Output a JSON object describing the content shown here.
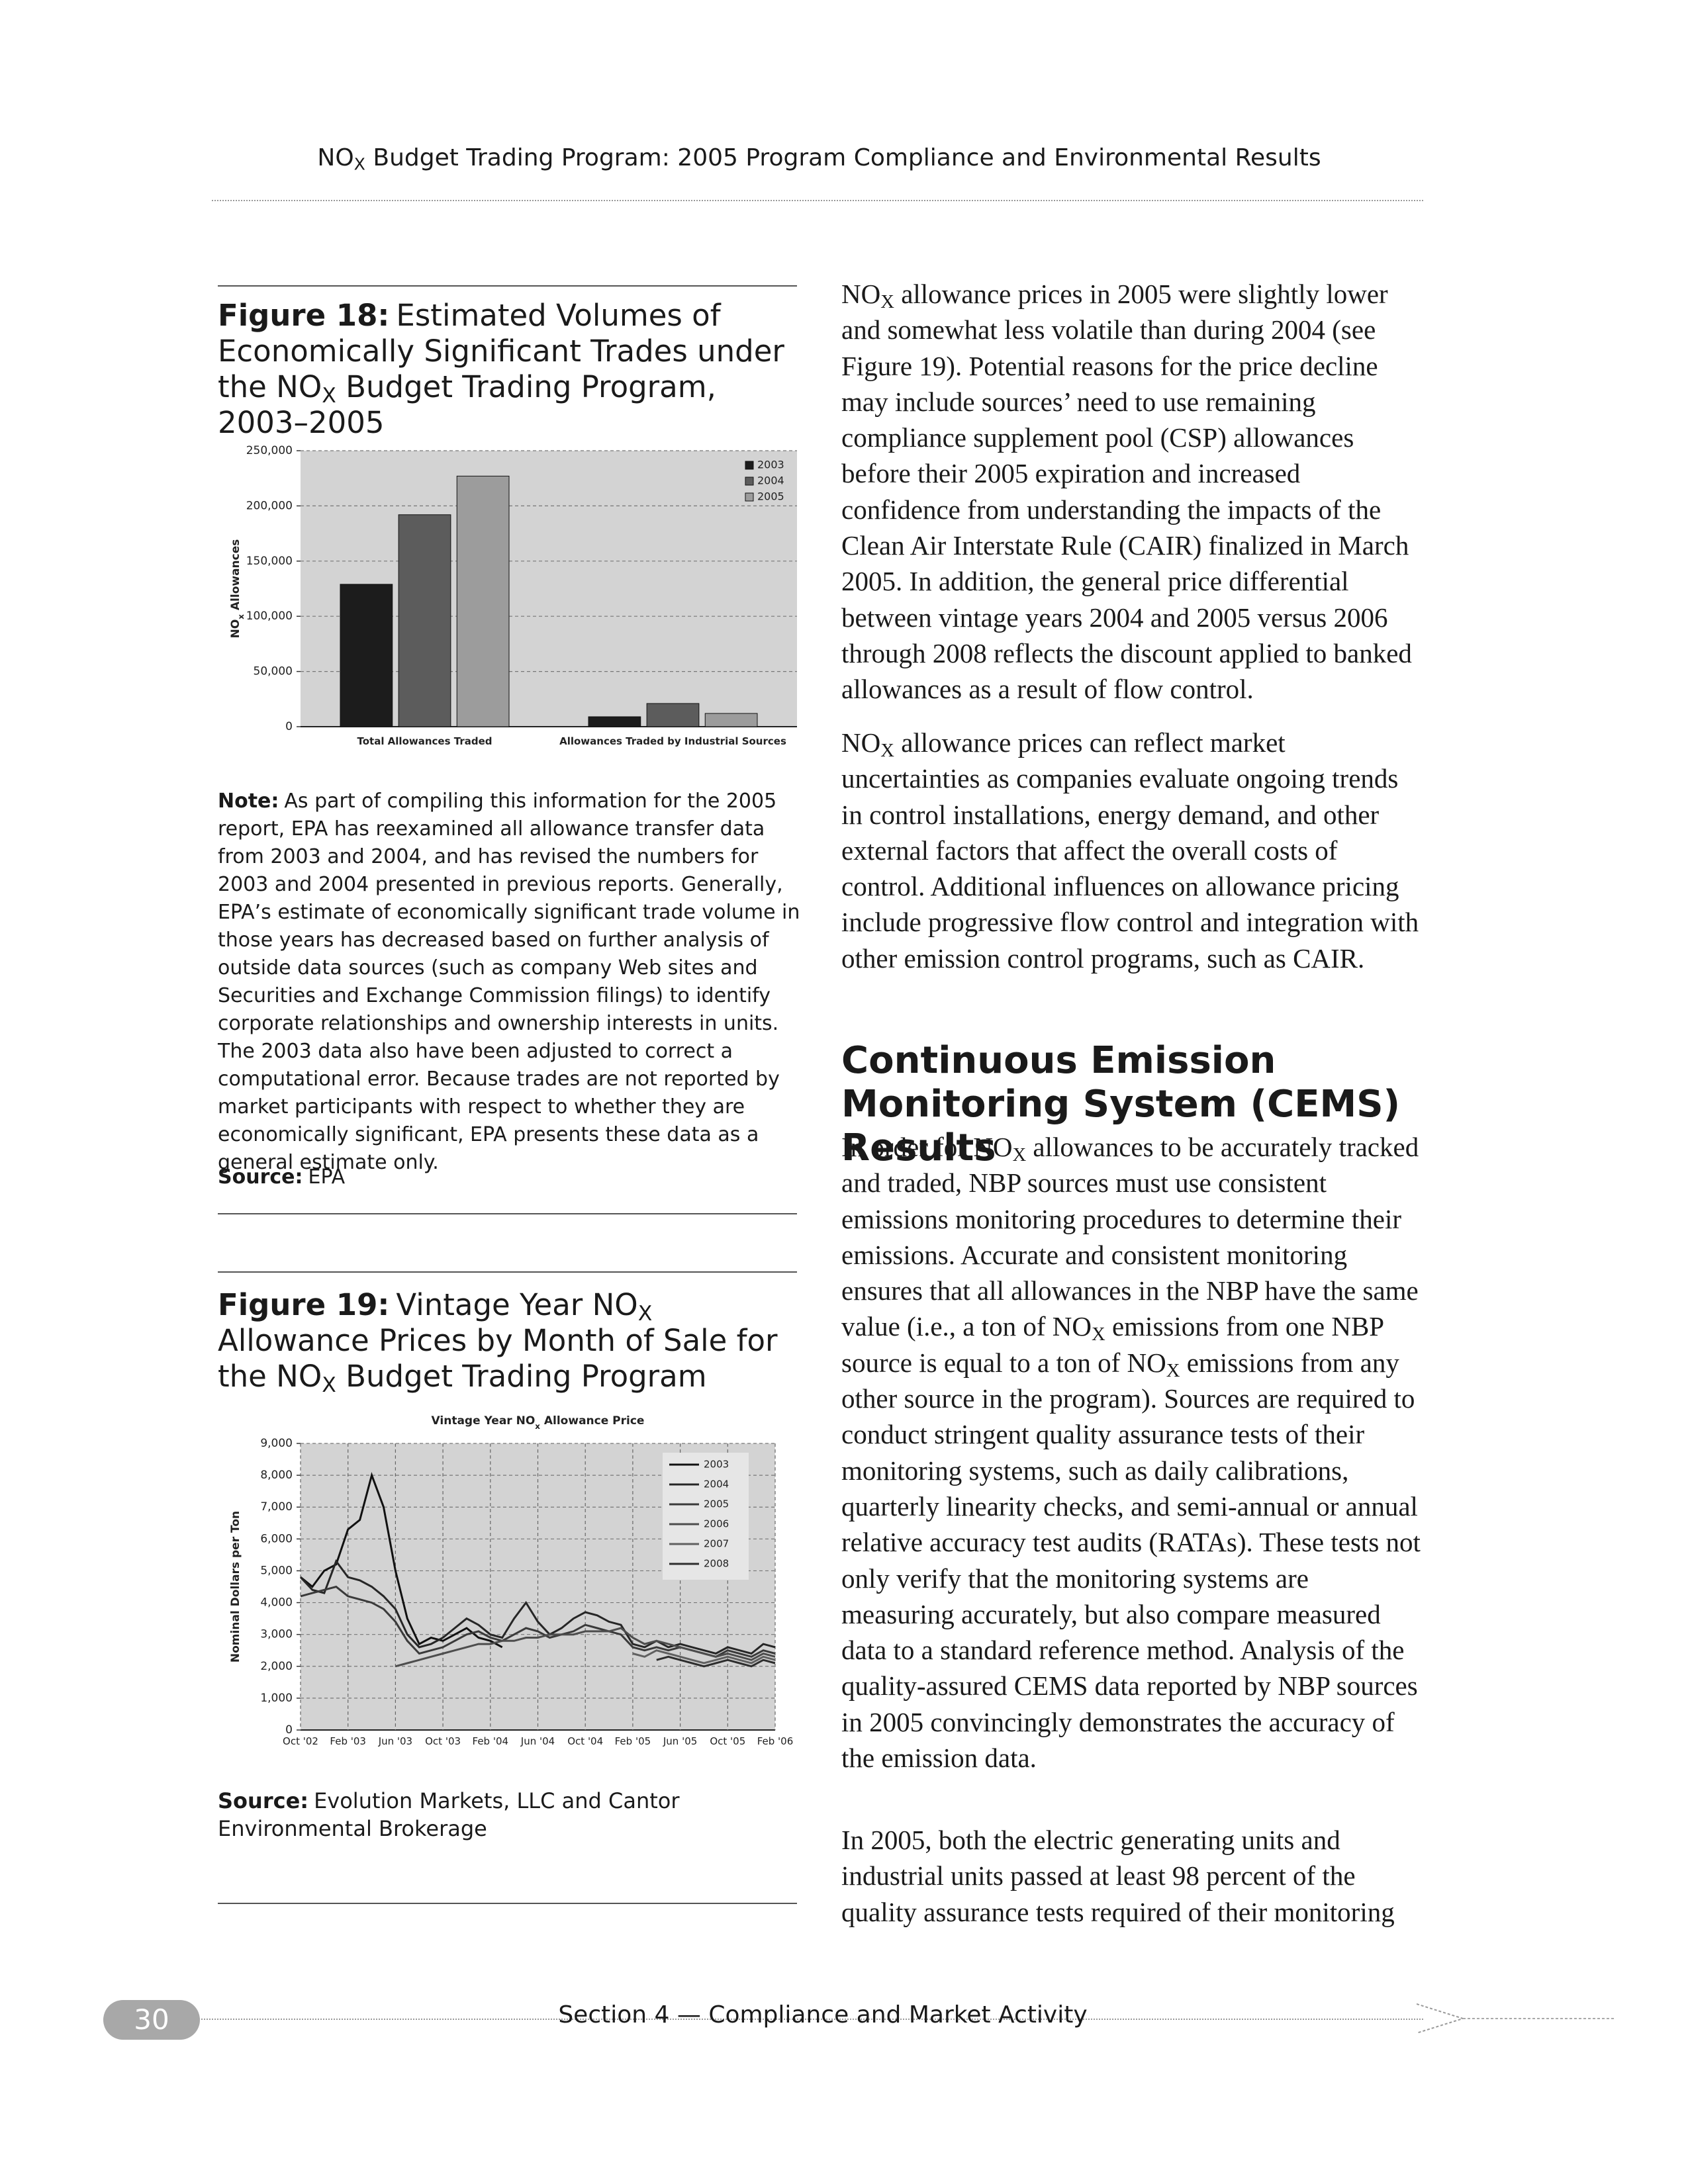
{
  "header": {
    "title": [
      "NO",
      {
        "sub": "X"
      },
      " Budget Trading Program: 2005 Program Compliance and Environmental Results"
    ]
  },
  "figure18": {
    "label": "Figure 18:",
    "caption": [
      "Estimated Volumes of Economically Significant Trades under the NO",
      {
        "sub": "X"
      },
      " Budget Trading Program, 2003–2005"
    ],
    "note_label": "Note:",
    "note": "As part of compiling this information for the 2005 report, EPA has reexamined all allowance transfer data from 2003 and 2004, and has revised the numbers for 2003 and 2004 presented in previous reports. Generally, EPA’s estimate of economically significant trade volume in those years has decreased based on further analysis of outside data sources (such as company Web sites and Securities and Exchange Commission filings) to identify corporate relationships and ownership interests in units. The 2003 data also have been adjusted to correct a computational error. Because trades are not reported by market participants with respect to whether they are economically significant, EPA presents these data as a general estimate only.",
    "source_label": "Source:",
    "source": "EPA"
  },
  "figure19": {
    "label": "Figure 19:",
    "caption": [
      "Vintage Year NO",
      {
        "sub": "X"
      },
      " Allowance Prices by Month of Sale for the NO",
      {
        "sub": "X"
      },
      " Budget Trading Program"
    ],
    "source_label": "Source:",
    "source": "Evolution Markets, LLC and Cantor Environmental Brokerage"
  },
  "chart_data": [
    {
      "type": "bar",
      "categories": [
        "Total Allowances Traded",
        "Allowances Traded by Industrial Sources"
      ],
      "series": [
        {
          "name": "2003",
          "color": "#1c1c1c",
          "values": [
            129000,
            9000
          ]
        },
        {
          "name": "2004",
          "color": "#5c5c5c",
          "values": [
            192000,
            21000
          ]
        },
        {
          "name": "2005",
          "color": "#9c9c9c",
          "values": [
            227000,
            12000
          ]
        }
      ],
      "ylabel": [
        "NO",
        {
          "sub": "x"
        },
        " Allowances"
      ],
      "ylim": [
        0,
        250000
      ],
      "yticks": [
        0,
        {
          "value": 50000,
          "label": "50,000"
        },
        {
          "value": 100000,
          "label": "100,000"
        },
        {
          "value": 150000,
          "label": "150,000"
        },
        {
          "value": 200000,
          "label": "200,000"
        },
        {
          "value": 250000,
          "label": "250,000"
        }
      ],
      "grid": true,
      "legend": "top-right"
    },
    {
      "type": "line",
      "title": [
        "Vintage Year NO",
        {
          "sub": "x"
        },
        " Allowance Price"
      ],
      "ylabel": "Nominal Dollars per Ton",
      "categories": [
        "Oct '02",
        null,
        null,
        null,
        "Feb '03",
        null,
        null,
        null,
        "Jun '03",
        null,
        null,
        null,
        "Oct '03",
        null,
        null,
        null,
        "Feb '04",
        null,
        null,
        null,
        "Jun '04",
        null,
        null,
        null,
        "Oct '04",
        null,
        null,
        null,
        "Feb '05",
        null,
        null,
        null,
        "Jun '05",
        null,
        null,
        null,
        "Oct '05",
        null,
        null,
        null,
        "Feb '06"
      ],
      "series": [
        {
          "name": "2003",
          "color": "#111111",
          "values": [
            4800,
            4500,
            5000,
            5200,
            6300,
            6600,
            8000,
            7000,
            5000,
            3500,
            2700,
            2900,
            2800,
            3000,
            3200,
            2900,
            2800,
            2600,
            null,
            null,
            null,
            null,
            null,
            null,
            null,
            null,
            null,
            null,
            null,
            null,
            null,
            null,
            null,
            null,
            null,
            null,
            null,
            null,
            null,
            null,
            null
          ]
        },
        {
          "name": "2004",
          "color": "#262626",
          "values": [
            4800,
            4400,
            4300,
            5300,
            4800,
            4700,
            4500,
            4200,
            3800,
            3000,
            2600,
            2700,
            2900,
            3200,
            3500,
            3300,
            3000,
            2900,
            3500,
            4000,
            3400,
            3000,
            3200,
            3500,
            3700,
            3600,
            3400,
            3300,
            2700,
            2600,
            2800,
            2600,
            2700,
            2600,
            2500,
            2400,
            2600,
            2500,
            2400,
            2700,
            2600
          ]
        },
        {
          "name": "2005",
          "color": "#3a3a3a",
          "values": [
            4200,
            4300,
            4400,
            4500,
            4200,
            4100,
            4000,
            3800,
            3400,
            2800,
            2400,
            2500,
            2600,
            2800,
            3000,
            3100,
            2900,
            2800,
            3000,
            3200,
            3100,
            2900,
            3000,
            3100,
            3300,
            3200,
            3100,
            3000,
            2600,
            2500,
            2600,
            2500,
            2600,
            2500,
            2400,
            2300,
            2500,
            2400,
            2300,
            2500,
            2400
          ]
        },
        {
          "name": "2006",
          "color": "#4d4d4d",
          "values": [
            null,
            null,
            null,
            null,
            null,
            null,
            null,
            null,
            2000,
            2100,
            2200,
            2300,
            2400,
            2500,
            2600,
            2700,
            2700,
            2800,
            2800,
            2900,
            2900,
            3000,
            3000,
            3000,
            3100,
            3100,
            3100,
            3200,
            2900,
            2700,
            2800,
            2700,
            2600,
            2500,
            2400,
            2300,
            2400,
            2300,
            2200,
            2400,
            2300
          ]
        },
        {
          "name": "2007",
          "color": "#606060",
          "values": [
            null,
            null,
            null,
            null,
            null,
            null,
            null,
            null,
            null,
            null,
            null,
            null,
            null,
            null,
            null,
            null,
            null,
            null,
            null,
            null,
            null,
            null,
            null,
            null,
            null,
            null,
            null,
            null,
            2400,
            2300,
            2500,
            2400,
            2300,
            2200,
            2100,
            2200,
            2300,
            2200,
            2100,
            2300,
            2200
          ]
        },
        {
          "name": "2008",
          "color": "#2e2e2e",
          "values": [
            null,
            null,
            null,
            null,
            null,
            null,
            null,
            null,
            null,
            null,
            null,
            null,
            null,
            null,
            null,
            null,
            null,
            null,
            null,
            null,
            null,
            null,
            null,
            null,
            null,
            null,
            null,
            null,
            null,
            null,
            2200,
            2300,
            2200,
            2100,
            2000,
            2100,
            2200,
            2100,
            2000,
            2200,
            2100
          ]
        }
      ],
      "ylim": [
        0,
        9000
      ],
      "yticks": [
        0,
        {
          "value": 1000,
          "label": "1,000"
        },
        {
          "value": 2000,
          "label": "2,000"
        },
        {
          "value": 3000,
          "label": "3,000"
        },
        {
          "value": 4000,
          "label": "4,000"
        },
        {
          "value": 5000,
          "label": "5,000"
        },
        {
          "value": 6000,
          "label": "6,000"
        },
        {
          "value": 7000,
          "label": "7,000"
        },
        {
          "value": 8000,
          "label": "8,000"
        },
        {
          "value": 9000,
          "label": "9,000"
        }
      ],
      "grid": true,
      "legend": "top-right"
    }
  ],
  "body": {
    "paragraphs_top": [
      [
        "NO",
        {
          "sub": "X"
        },
        " allowance prices in 2005 were slightly lower and somewhat less volatile than during 2004 (see Figure 19). Potential reasons for the price decline may include sources’ need to use remaining compliance supplement pool (CSP) allowances before their 2005 expiration and increased confidence from understanding the impacts of the Clean Air Interstate Rule (CAIR) finalized in March 2005. In addition, the general price differential between vintage years 2004 and 2005 versus 2006 through 2008 reflects the discount applied to banked allowances as a result of flow control."
      ],
      [
        "NO",
        {
          "sub": "X"
        },
        " allowance prices can reflect market uncertainties as companies evaluate ongoing trends in control installations, energy demand, and other external factors that affect the overall costs of control. Additional influences on allowance pricing include progressive flow control and integration with other emission control programs, such as CAIR."
      ]
    ],
    "heading": "Continuous Emission Monitoring System (CEMS) Results",
    "paragraphs": [
      [
        "In order for NO",
        {
          "sub": "X"
        },
        " allowances to be accurately tracked and traded, NBP sources must use consistent emissions monitoring procedures to determine their emissions. Accurate and consistent monitoring ensures that all allowances in the NBP have the same value (i.e., a ton of NO",
        {
          "sub": "X"
        },
        " emissions from one NBP source is equal to a ton of NO",
        {
          "sub": "X"
        },
        " emissions from any other source in the program). Sources are required to conduct stringent quality assurance tests of their monitoring systems, such as daily calibrations, quarterly linearity checks, and semi-annual or annual relative accuracy test audits (RATAs). These tests not only verify that the monitoring systems are measuring accurately, but also compare measured data to a standard reference method. Analysis of the quality-assured CEMS data reported by NBP sources in 2005 convincingly demonstrates the accuracy of the emission data."
      ],
      "In 2005, both the electric generating units and industrial units passed at least 98 percent of the quality assurance tests required of their monitoring"
    ]
  },
  "footer": {
    "page_number": "30",
    "section": "Section 4 — Compliance and Market Activity"
  }
}
